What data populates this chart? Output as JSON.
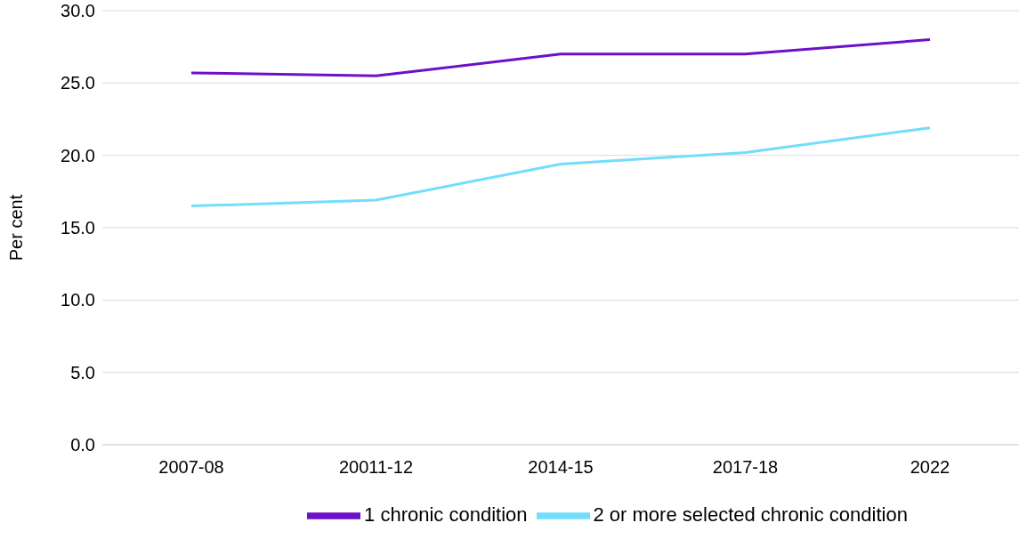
{
  "chart_data": {
    "type": "line",
    "ylabel": "Per cent",
    "categories": [
      "2007-08",
      "20011-12",
      "2014-15",
      "2017-18",
      "2022"
    ],
    "series": [
      {
        "name": "1 chronic condition",
        "color": "#6e0fc9",
        "values": [
          25.7,
          25.5,
          27.0,
          27.0,
          28.0
        ]
      },
      {
        "name": "2 or more selected chronic condition",
        "color": "#72ddfc",
        "values": [
          16.5,
          16.9,
          19.4,
          20.2,
          21.9
        ]
      }
    ],
    "ylim": [
      0,
      30
    ],
    "yticks": [
      {
        "value": 0,
        "label": "0.0"
      },
      {
        "value": 5,
        "label": "5.0"
      },
      {
        "value": 10,
        "label": "10.0"
      },
      {
        "value": 15,
        "label": "15.0"
      },
      {
        "value": 20,
        "label": "20.0"
      },
      {
        "value": 25,
        "label": "25.0"
      },
      {
        "value": 30,
        "label": "30.0"
      }
    ],
    "grid": "y",
    "legend": "bottom",
    "marker": "none",
    "line_style": "solid"
  }
}
